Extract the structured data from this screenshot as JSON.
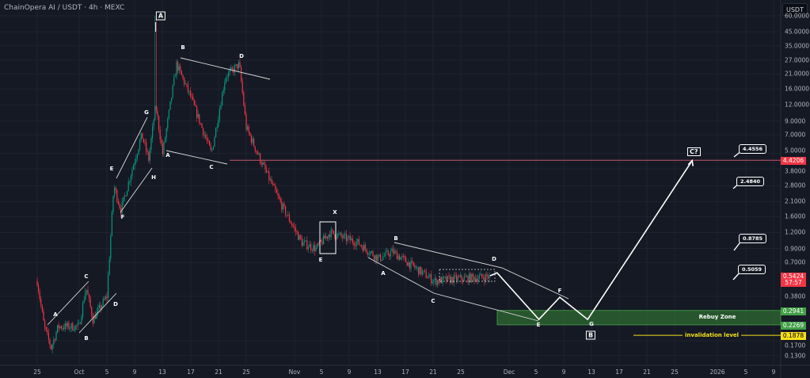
{
  "header": {
    "title": "ChainOpera AI / USDT · 4h · MEXC",
    "currency_button": "USDT"
  },
  "colors": {
    "background": "#151924",
    "up": "#089981",
    "down": "#f23645",
    "rebuy_zone": "#2e6b32",
    "invalidation": "#f5e11b",
    "current_price": "#f23645"
  },
  "price_axis": {
    "ticks": [
      "60.0000",
      "45.0000",
      "35.0000",
      "27.0000",
      "21.0000",
      "16.0000",
      "12.0000",
      "9.0000",
      "7.0000",
      "5.0000",
      "3.8000",
      "2.8000",
      "2.1000",
      "1.6000",
      "1.2000",
      "0.9000",
      "0.7000",
      "0.3800",
      "0.1700",
      "0.1300"
    ],
    "scale": "log",
    "tags": {
      "horizontal_level": "4.4206",
      "current_price": "0.5424",
      "countdown": "57:57",
      "rebuy_top": "0.2941",
      "rebuy_bottom": "0.2269",
      "invalidation": "0.1878"
    }
  },
  "time_axis": {
    "ticks": [
      "25",
      "Oct",
      "5",
      "9",
      "13",
      "17",
      "21",
      "25",
      "Nov",
      "5",
      "9",
      "13",
      "17",
      "21",
      "25",
      "Dec",
      "5",
      "9",
      "13",
      "17",
      "21",
      "25",
      "2026",
      "5",
      "9"
    ]
  },
  "annotations": {
    "wave_labels": [
      "A",
      "B",
      "C",
      "D",
      "E",
      "F",
      "G",
      "H",
      "A",
      "B",
      "A",
      "C",
      "D",
      "X",
      "E",
      "B",
      "A",
      "C",
      "D",
      "F",
      "E",
      "G",
      "B"
    ],
    "projection_target": "C?",
    "callouts": [
      "4.4556",
      "2.4840",
      "0.8785",
      "0.5059"
    ],
    "rebuy_zone": "Rebuy Zone",
    "invalidation": "invalidation level"
  },
  "chart_data": {
    "type": "candlestick",
    "title": "ChainOpera AI / USDT · 4h · MEXC",
    "y_scale": "log",
    "ylim": [
      0.12,
      65
    ],
    "xlim": [
      "2025-09-22",
      "2026-01-10"
    ],
    "grid": true,
    "price_path": [
      {
        "date": "2025-09-25",
        "price": 0.5
      },
      {
        "date": "2025-09-26",
        "price": 0.22
      },
      {
        "date": "2025-09-27",
        "price": 0.15
      },
      {
        "date": "2025-09-28",
        "price": 0.22
      },
      {
        "date": "2025-10-01",
        "price": 0.22
      },
      {
        "date": "2025-10-02",
        "price": 0.45
      },
      {
        "date": "2025-10-03",
        "price": 0.25
      },
      {
        "date": "2025-10-05",
        "price": 0.38
      },
      {
        "date": "2025-10-06",
        "price": 2.8
      },
      {
        "date": "2025-10-07",
        "price": 1.8
      },
      {
        "date": "2025-10-10",
        "price": 7
      },
      {
        "date": "2025-10-11",
        "price": 4.5
      },
      {
        "date": "2025-10-12",
        "price": 12
      },
      {
        "date": "2025-10-13",
        "price": 5
      },
      {
        "date": "2025-10-15",
        "price": 25
      },
      {
        "date": "2025-10-17",
        "price": 14
      },
      {
        "date": "2025-10-20",
        "price": 5
      },
      {
        "date": "2025-10-22",
        "price": 20
      },
      {
        "date": "2025-10-24",
        "price": 25
      },
      {
        "date": "2025-10-25",
        "price": 8
      },
      {
        "date": "2025-10-27",
        "price": 4.5
      },
      {
        "date": "2025-10-30",
        "price": 2
      },
      {
        "date": "2025-11-02",
        "price": 1.0
      },
      {
        "date": "2025-11-04",
        "price": 0.9
      },
      {
        "date": "2025-11-06",
        "price": 1.2
      },
      {
        "date": "2025-11-10",
        "price": 1.0
      },
      {
        "date": "2025-11-13",
        "price": 0.75
      },
      {
        "date": "2025-11-15",
        "price": 0.85
      },
      {
        "date": "2025-11-18",
        "price": 0.65
      },
      {
        "date": "2025-11-21",
        "price": 0.5
      },
      {
        "date": "2025-11-24",
        "price": 0.52
      },
      {
        "date": "2025-11-29",
        "price": 0.5424
      }
    ],
    "high_spike": {
      "date": "2025-10-12",
      "price": 60
    },
    "projection": [
      {
        "date": "2025-11-29",
        "price": 0.55
      },
      {
        "date": "2025-11-30",
        "price": 0.58
      },
      {
        "date": "2025-12-06",
        "price": 0.25
      },
      {
        "date": "2025-12-09",
        "price": 0.373
      },
      {
        "date": "2025-12-13",
        "price": 0.25
      },
      {
        "date": "2025-12-28",
        "price": 4.4
      }
    ],
    "levels": {
      "horizontal": 4.4206,
      "rebuy_zone": [
        0.2269,
        0.2941
      ],
      "invalidation": 0.1878
    }
  }
}
